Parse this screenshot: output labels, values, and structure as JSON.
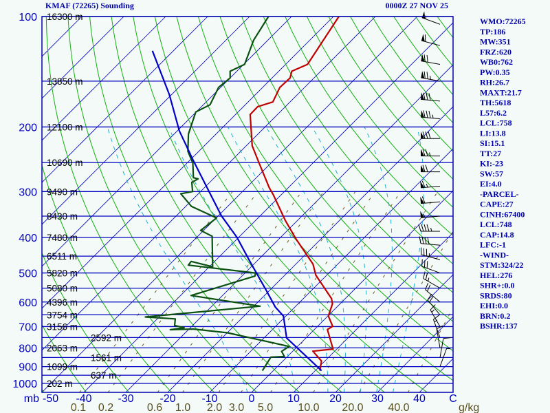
{
  "chart_data": {
    "type": "line",
    "subtype": "skew-t log-p sounding",
    "title": "KMAF (72265) Sounding",
    "datetime": "0000Z 27 NOV 25",
    "pressure_unit_label": "mb",
    "temp_unit_label": "C",
    "mixing_unit_label": "g/kg",
    "ylim_mb": [
      1058,
      100
    ],
    "xlim_c_at_bottom": [
      -50,
      48
    ],
    "pressure_ticks": [
      100,
      200,
      300,
      400,
      500,
      600,
      700,
      800,
      900,
      1000
    ],
    "temp_ticks": [
      -50,
      -40,
      -30,
      -20,
      -10,
      0,
      10,
      20,
      30,
      40
    ],
    "mixing_ratio_ticks": [
      "0.1",
      "0.2",
      "0.6",
      "1.0",
      "2.0",
      "3.0",
      "5.0",
      "10.0",
      "20.0",
      "40.0"
    ],
    "height_labels": [
      {
        "p": 100,
        "label": "16300 m"
      },
      {
        "p": 150,
        "label": "13850 m"
      },
      {
        "p": 200,
        "label": "12100 m"
      },
      {
        "p": 250,
        "label": "10690 m"
      },
      {
        "p": 300,
        "label": "9490 m"
      },
      {
        "p": 350,
        "label": "8430 m"
      },
      {
        "p": 400,
        "label": "7480 m"
      },
      {
        "p": 450,
        "label": "6511 m"
      },
      {
        "p": 500,
        "label": "5820 m"
      },
      {
        "p": 550,
        "label": "5080 m"
      },
      {
        "p": 600,
        "label": "4396 m"
      },
      {
        "p": 650,
        "label": "3754 m"
      },
      {
        "p": 700,
        "label": "3156 m"
      },
      {
        "p": 750,
        "label": "2592 m"
      },
      {
        "p": 800,
        "label": "2063 m"
      },
      {
        "p": 850,
        "label": "1561 m"
      },
      {
        "p": 900,
        "label": "1099 m"
      },
      {
        "p": 950,
        "label": "637 m"
      },
      {
        "p": 1000,
        "label": "202 m"
      }
    ],
    "series": [
      {
        "name": "Temperature",
        "color": "#c00000",
        "p": [
          923,
          869,
          817,
          806,
          713,
          699,
          655,
          607,
          587,
          507,
          473,
          403,
          359,
          306,
          293,
          251,
          225,
          185,
          176,
          171,
          156,
          147,
          141,
          135,
          100
        ],
        "t": [
          11.1,
          9.2,
          4.8,
          9.1,
          3.1,
          3.6,
          0.1,
          -1.8,
          -3.3,
          -12.6,
          -15.9,
          -26.1,
          -33.0,
          -41.9,
          -44.5,
          -52.8,
          -58.6,
          -66.5,
          -66.6,
          -64.1,
          -65.9,
          -65.7,
          -66.9,
          -64.8,
          -68.7
        ]
      },
      {
        "name": "Dewpoint",
        "color": "#0a5010",
        "p": [
          923,
          848,
          845,
          818,
          793,
          728,
          711,
          714,
          705,
          695,
          667,
          659,
          616,
          576,
          510,
          500,
          476,
          465,
          481,
          397,
          383,
          354,
          329,
          304,
          300,
          283,
          277,
          275,
          251,
          233,
          209,
          182,
          174,
          156,
          147,
          141,
          135,
          116,
          100
        ],
        "t": [
          -2.6,
          -3.8,
          -0.7,
          -2.6,
          -2.0,
          -19.9,
          -29.0,
          -34.3,
          -31.5,
          -34.3,
          -35.7,
          -43.3,
          -18.5,
          -37.5,
          -26.9,
          -27.5,
          -45.4,
          -45.6,
          -39.2,
          -46.6,
          -50.7,
          -49.9,
          -58.7,
          -64.2,
          -61.9,
          -64.3,
          -63.6,
          -65.0,
          -68.6,
          -72.6,
          -76.6,
          -80.1,
          -78.4,
          -80.5,
          -80.0,
          -81.6,
          -79.8,
          -83.4,
          -85.5
        ]
      },
      {
        "name": "Parcel",
        "color": "#0000c8",
        "p": [
          923,
          752,
          655,
          620,
          553,
          465,
          400,
          349,
          247,
          205,
          163,
          124
        ],
        "t": [
          11.5,
          -4.6,
          -10.6,
          -14.6,
          -21.3,
          -31.6,
          -40.4,
          -49.3,
          -69.1,
          -79.5,
          -90.6,
          -105.0
        ]
      }
    ],
    "wind_barbs": [
      {
        "p": 105,
        "dir": 290,
        "kt": 55
      },
      {
        "p": 120,
        "dir": 285,
        "kt": 60
      },
      {
        "p": 135,
        "dir": 280,
        "kt": 70
      },
      {
        "p": 150,
        "dir": 280,
        "kt": 75
      },
      {
        "p": 170,
        "dir": 275,
        "kt": 80
      },
      {
        "p": 190,
        "dir": 275,
        "kt": 85
      },
      {
        "p": 215,
        "dir": 270,
        "kt": 80
      },
      {
        "p": 240,
        "dir": 270,
        "kt": 75
      },
      {
        "p": 265,
        "dir": 270,
        "kt": 70
      },
      {
        "p": 290,
        "dir": 265,
        "kt": 65
      },
      {
        "p": 320,
        "dir": 265,
        "kt": 60
      },
      {
        "p": 350,
        "dir": 265,
        "kt": 55
      },
      {
        "p": 385,
        "dir": 270,
        "kt": 45
      },
      {
        "p": 420,
        "dir": 275,
        "kt": 40
      },
      {
        "p": 460,
        "dir": 285,
        "kt": 35
      },
      {
        "p": 500,
        "dir": 290,
        "kt": 30
      },
      {
        "p": 550,
        "dir": 300,
        "kt": 25
      },
      {
        "p": 600,
        "dir": 310,
        "kt": 20
      },
      {
        "p": 650,
        "dir": 320,
        "kt": 20
      },
      {
        "p": 700,
        "dir": 330,
        "kt": 15
      },
      {
        "p": 750,
        "dir": 340,
        "kt": 15
      },
      {
        "p": 800,
        "dir": 350,
        "kt": 10
      },
      {
        "p": 850,
        "dir": 10,
        "kt": 10
      },
      {
        "p": 900,
        "dir": 20,
        "kt": 5
      }
    ]
  },
  "indices": [
    "WMO:72265",
    "TP:186",
    "MW:351",
    "FRZ:620",
    "WB0:762",
    "PW:0.35",
    "RH:26.7",
    "MAXT:21.7",
    "TH:5618",
    "L57:6.2",
    "LCL:758",
    "LI:13.8",
    "SI:15.1",
    "TT:27",
    "KI:-23",
    "SW:57",
    "EI:4.0",
    "-PARCEL-",
    "CAPE:27",
    "CINH:67400",
    "LCL:748",
    "CAP:14.8",
    "LFC:-1",
    "-WIND-",
    "STM:324/22",
    "HEL:276",
    "SHR+:0.0",
    "SRDS:80",
    "EHI:0.0",
    "BRN:0.2",
    "BSHR:137"
  ]
}
